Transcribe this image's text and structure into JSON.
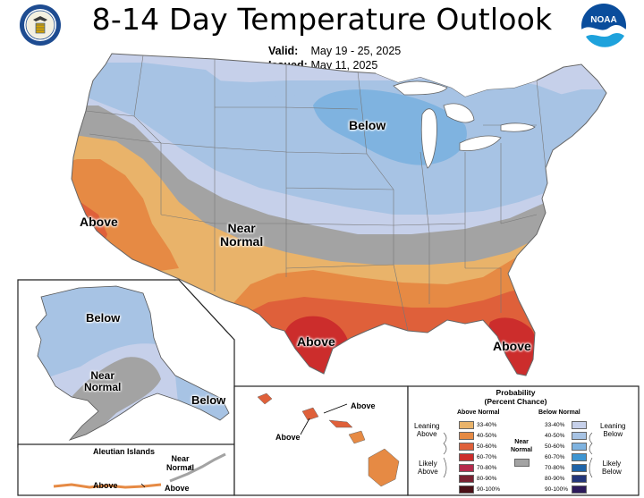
{
  "header": {
    "title": "8-14 Day Temperature Outlook",
    "valid_label": "Valid:",
    "valid_value": "May 19 - 25, 2025",
    "issued_label": "Issued:",
    "issued_value": "May 11, 2025"
  },
  "logos": {
    "left": "us-department-of-commerce-seal",
    "right": "noaa-logo",
    "noaa_text": "NOAA"
  },
  "conus_labels": {
    "below": "Below",
    "near": "Near",
    "normal": "Normal",
    "above_west": "Above",
    "above_texas": "Above",
    "above_florida": "Above"
  },
  "alaska_labels": {
    "below_north": "Below",
    "near": "Near",
    "normal": "Normal",
    "below_southeast": "Below"
  },
  "aleutian": {
    "title": "Aleutian Islands",
    "near": "Near",
    "normal": "Normal",
    "above_left": "Above",
    "above_right": "Above"
  },
  "hawaii_labels": {
    "above_top": "Above",
    "above_bottom": "Above"
  },
  "legend": {
    "title_line1": "Probability",
    "title_line2": "(Percent Chance)",
    "above_header": "Above Normal",
    "below_header": "Below Normal",
    "near_label_1": "Near",
    "near_label_2": "Normal",
    "leaning_above_1": "Leaning",
    "leaning_above_2": "Above",
    "likely_above_1": "Likely",
    "likely_above_2": "Above",
    "leaning_below_1": "Leaning",
    "leaning_below_2": "Below",
    "likely_below_1": "Likely",
    "likely_below_2": "Below",
    "above_ranges": [
      "33-40%",
      "40-50%",
      "50-60%",
      "60-70%",
      "70-80%",
      "80-90%",
      "90-100%"
    ],
    "below_ranges": [
      "33-40%",
      "40-50%",
      "50-60%",
      "60-70%",
      "70-80%",
      "80-90%",
      "90-100%"
    ],
    "above_colors": [
      "#e9b36a",
      "#e68a44",
      "#df603a",
      "#cc2d2c",
      "#b52a4c",
      "#7a2131",
      "#4a1016"
    ],
    "below_colors": [
      "#c6d0ea",
      "#a7c3e4",
      "#7fb3e0",
      "#3f96d2",
      "#1f64a8",
      "#23367a",
      "#2c1a5a"
    ],
    "near_color": "#a3a3a3"
  }
}
